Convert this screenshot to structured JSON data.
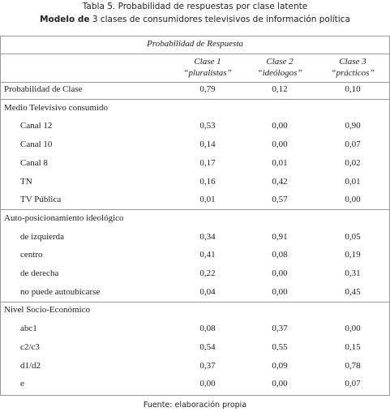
{
  "title": {
    "label": "Tabla 5.",
    "text": "Probabilidad de respuestas por clase latente"
  },
  "subtitle": {
    "label": "Modelo de",
    "text": "3 clases de consumidores televisivos de información política"
  },
  "table": {
    "header": "Probabilidad de Respuesta",
    "columns": [
      {
        "name": "Clase 1",
        "desc": "“pluralistas”"
      },
      {
        "name": "Clase 2",
        "desc": "“ideólogos”"
      },
      {
        "name": "Clase 3",
        "desc": "“prácticos”"
      }
    ],
    "class_row": {
      "label": "Probabilidad de Clase",
      "values": [
        "0,79",
        "0,12",
        "0,10"
      ]
    },
    "sections": [
      {
        "title": "Medio Televisivo consumido",
        "rows": [
          {
            "label": "Canal 12",
            "values": [
              "0,53",
              "0,00",
              "0,90"
            ]
          },
          {
            "label": "Canal 10",
            "values": [
              "0,14",
              "0,00",
              "0,07"
            ]
          },
          {
            "label": "Canal 8",
            "values": [
              "0,17",
              "0,01",
              "0,02"
            ]
          },
          {
            "label": "TN",
            "values": [
              "0,16",
              "0,42",
              "0,01"
            ]
          },
          {
            "label": "TV Pública",
            "values": [
              "0,01",
              "0,57",
              "0,00"
            ]
          }
        ]
      },
      {
        "title": "Auto-posicionamiento ideológico",
        "rows": [
          {
            "label": "de izquierda",
            "values": [
              "0,34",
              "0,91",
              "0,05"
            ]
          },
          {
            "label": "centro",
            "values": [
              "0,41",
              "0,08",
              "0,19"
            ]
          },
          {
            "label": "de derecha",
            "values": [
              "0,22",
              "0,00",
              "0,31"
            ]
          },
          {
            "label": "no puede autoubicarse",
            "values": [
              "0,04",
              "0,00",
              "0,45"
            ]
          }
        ]
      },
      {
        "title": "Nivel Socio-Económico",
        "rows": [
          {
            "label": "abc1",
            "values": [
              "0,08",
              "0,37",
              "0,00"
            ]
          },
          {
            "label": "c2/c3",
            "values": [
              "0,54",
              "0,55",
              "0,15"
            ]
          },
          {
            "label": "d1/d2",
            "values": [
              "0,37",
              "0,09",
              "0,78"
            ]
          },
          {
            "label": "e",
            "values": [
              "0,00",
              "0,00",
              "0,07"
            ]
          }
        ]
      }
    ]
  },
  "footer": "Fuente: elaboración propia"
}
